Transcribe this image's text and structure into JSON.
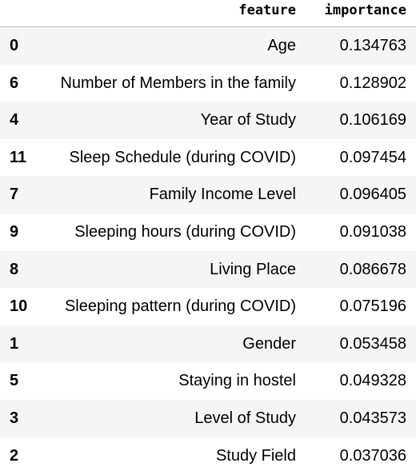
{
  "table": {
    "header": [
      "feature",
      "importance"
    ],
    "rows": [
      [
        "0",
        "Age",
        "0.134763"
      ],
      [
        "6",
        "Number of Members in the family",
        "0.128902"
      ],
      [
        "4",
        "Year of Study",
        "0.106169"
      ],
      [
        "11",
        "Sleep Schedule (during COVID)",
        "0.097454"
      ],
      [
        "7",
        "Family Income Level",
        "0.096405"
      ],
      [
        "9",
        "Sleeping hours (during COVID)",
        "0.091038"
      ],
      [
        "8",
        "Living Place",
        "0.086678"
      ],
      [
        "10",
        "Sleeping pattern (during COVID)",
        "0.075196"
      ],
      [
        "1",
        "Gender",
        "0.053458"
      ],
      [
        "5",
        "Staying in hostel",
        "0.049328"
      ],
      [
        "3",
        "Level of Study",
        "0.043573"
      ],
      [
        "2",
        "Study Field",
        "0.037036"
      ]
    ]
  }
}
